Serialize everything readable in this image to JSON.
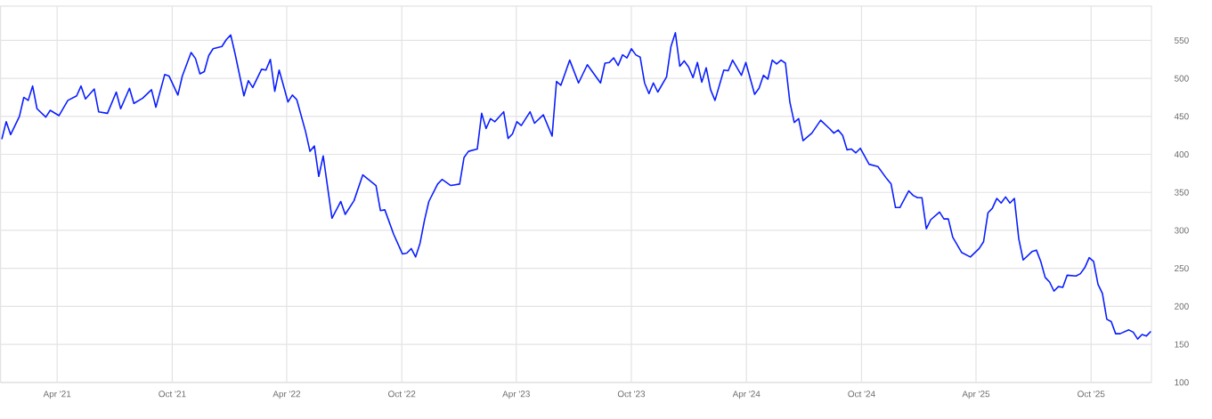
{
  "chart_data": {
    "type": "line",
    "color": "#0a1eff",
    "grid": true,
    "marker": "none",
    "line_style": "solid",
    "xlim": [
      "2021-01-01",
      "2026-01-05"
    ],
    "ylim": [
      100,
      595
    ],
    "xticks": [
      {
        "value": "2021-04-01",
        "label": "Apr '21"
      },
      {
        "value": "2021-10-01",
        "label": "Oct '21"
      },
      {
        "value": "2022-04-01",
        "label": "Apr '22"
      },
      {
        "value": "2022-10-01",
        "label": "Oct '22"
      },
      {
        "value": "2023-04-01",
        "label": "Apr '23"
      },
      {
        "value": "2023-10-01",
        "label": "Oct '23"
      },
      {
        "value": "2024-04-01",
        "label": "Apr '24"
      },
      {
        "value": "2024-10-01",
        "label": "Oct '24"
      },
      {
        "value": "2025-04-01",
        "label": "Apr '25"
      },
      {
        "value": "2025-10-01",
        "label": "Oct '25"
      }
    ],
    "yticks": [
      100,
      150,
      200,
      250,
      300,
      350,
      400,
      450,
      500,
      550
    ],
    "x": [
      "2021-01-03",
      "2021-01-10",
      "2021-01-17",
      "2021-01-31",
      "2021-02-07",
      "2021-02-14",
      "2021-02-21",
      "2021-02-28",
      "2021-03-14",
      "2021-03-21",
      "2021-04-04",
      "2021-04-18",
      "2021-05-02",
      "2021-05-09",
      "2021-05-16",
      "2021-05-30",
      "2021-06-06",
      "2021-06-20",
      "2021-07-04",
      "2021-07-11",
      "2021-07-25",
      "2021-08-01",
      "2021-08-15",
      "2021-08-29",
      "2021-09-05",
      "2021-09-19",
      "2021-09-26",
      "2021-10-10",
      "2021-10-17",
      "2021-10-31",
      "2021-11-07",
      "2021-11-14",
      "2021-11-21",
      "2021-11-28",
      "2021-12-05",
      "2021-12-19",
      "2021-12-26",
      "2022-01-02",
      "2022-01-09",
      "2022-01-23",
      "2022-01-30",
      "2022-02-06",
      "2022-02-20",
      "2022-02-27",
      "2022-03-06",
      "2022-03-13",
      "2022-03-20",
      "2022-04-03",
      "2022-04-10",
      "2022-04-17",
      "2022-05-01",
      "2022-05-08",
      "2022-05-15",
      "2022-05-22",
      "2022-05-29",
      "2022-06-12",
      "2022-06-26",
      "2022-07-03",
      "2022-07-17",
      "2022-07-31",
      "2022-08-21",
      "2022-08-28",
      "2022-09-04",
      "2022-09-18",
      "2022-10-02",
      "2022-10-09",
      "2022-10-16",
      "2022-10-23",
      "2022-10-30",
      "2022-11-06",
      "2022-11-13",
      "2022-11-27",
      "2022-12-04",
      "2022-12-18",
      "2023-01-01",
      "2023-01-08",
      "2023-01-15",
      "2023-01-29",
      "2023-02-05",
      "2023-02-12",
      "2023-02-19",
      "2023-02-26",
      "2023-03-12",
      "2023-03-19",
      "2023-03-26",
      "2023-04-02",
      "2023-04-09",
      "2023-04-23",
      "2023-04-30",
      "2023-05-14",
      "2023-05-28",
      "2023-06-04",
      "2023-06-11",
      "2023-06-25",
      "2023-07-09",
      "2023-07-23",
      "2023-08-13",
      "2023-08-20",
      "2023-08-27",
      "2023-09-03",
      "2023-09-10",
      "2023-09-17",
      "2023-09-24",
      "2023-10-01",
      "2023-10-08",
      "2023-10-15",
      "2023-10-22",
      "2023-10-29",
      "2023-11-05",
      "2023-11-12",
      "2023-11-26",
      "2023-12-03",
      "2023-12-10",
      "2023-12-17",
      "2023-12-24",
      "2023-12-31",
      "2024-01-07",
      "2024-01-14",
      "2024-01-21",
      "2024-01-28",
      "2024-02-04",
      "2024-02-11",
      "2024-02-25",
      "2024-03-03",
      "2024-03-10",
      "2024-03-24",
      "2024-03-31",
      "2024-04-14",
      "2024-04-21",
      "2024-04-28",
      "2024-05-05",
      "2024-05-12",
      "2024-05-19",
      "2024-05-26",
      "2024-06-02",
      "2024-06-09",
      "2024-06-16",
      "2024-06-23",
      "2024-06-30",
      "2024-07-14",
      "2024-07-28",
      "2024-08-11",
      "2024-08-18",
      "2024-08-25",
      "2024-09-01",
      "2024-09-08",
      "2024-09-15",
      "2024-09-22",
      "2024-09-29",
      "2024-10-13",
      "2024-10-27",
      "2024-11-10",
      "2024-11-17",
      "2024-11-24",
      "2024-12-01",
      "2024-12-15",
      "2024-12-22",
      "2024-12-29",
      "2025-01-05",
      "2025-01-12",
      "2025-01-19",
      "2025-02-02",
      "2025-02-09",
      "2025-02-16",
      "2025-02-23",
      "2025-03-09",
      "2025-03-23",
      "2025-04-06",
      "2025-04-13",
      "2025-04-20",
      "2025-04-27",
      "2025-05-04",
      "2025-05-11",
      "2025-05-18",
      "2025-05-25",
      "2025-06-01",
      "2025-06-08",
      "2025-06-15",
      "2025-06-29",
      "2025-07-06",
      "2025-07-13",
      "2025-07-20",
      "2025-07-27",
      "2025-08-03",
      "2025-08-10",
      "2025-08-17",
      "2025-08-24",
      "2025-09-07",
      "2025-09-14",
      "2025-09-21",
      "2025-09-28",
      "2025-10-05",
      "2025-10-12",
      "2025-10-19",
      "2025-10-26",
      "2025-11-02",
      "2025-11-09",
      "2025-11-16",
      "2025-11-30",
      "2025-12-07",
      "2025-12-14",
      "2025-12-21",
      "2025-12-28",
      "2026-01-04"
    ],
    "values": [
      420,
      443,
      426,
      450,
      475,
      471,
      490,
      460,
      449,
      458,
      451,
      471,
      477,
      490,
      473,
      486,
      456,
      454,
      482,
      460,
      487,
      467,
      474,
      485,
      462,
      505,
      503,
      478,
      503,
      534,
      526,
      506,
      509,
      530,
      539,
      542,
      551,
      557,
      532,
      477,
      497,
      488,
      512,
      511,
      525,
      483,
      511,
      469,
      478,
      472,
      430,
      404,
      411,
      371,
      398,
      316,
      338,
      321,
      339,
      373,
      359,
      326,
      327,
      295,
      269,
      270,
      276,
      265,
      283,
      313,
      338,
      361,
      367,
      359,
      361,
      396,
      404,
      407,
      454,
      434,
      447,
      443,
      456,
      421,
      427,
      443,
      438,
      456,
      441,
      452,
      424,
      496,
      491,
      524,
      494,
      518,
      494,
      520,
      521,
      527,
      517,
      531,
      527,
      539,
      531,
      528,
      494,
      480,
      494,
      482,
      502,
      542,
      560,
      516,
      523,
      515,
      501,
      521,
      495,
      514,
      485,
      471,
      511,
      510,
      524,
      504,
      521,
      479,
      487,
      504,
      499,
      524,
      519,
      524,
      520,
      469,
      442,
      447,
      418,
      428,
      445,
      434,
      428,
      432,
      425,
      406,
      407,
      402,
      408,
      387,
      384,
      368,
      361,
      330,
      330,
      352,
      346,
      343,
      343,
      302,
      314,
      324,
      315,
      315,
      291,
      271,
      265,
      276,
      285,
      323,
      329,
      342,
      336,
      344,
      336,
      342,
      289,
      261,
      272,
      274,
      259,
      238,
      232,
      220,
      226,
      225,
      241,
      240,
      243,
      251,
      264,
      259,
      229,
      217,
      183,
      180,
      164,
      164,
      169,
      166,
      157,
      163,
      161,
      167
    ]
  }
}
